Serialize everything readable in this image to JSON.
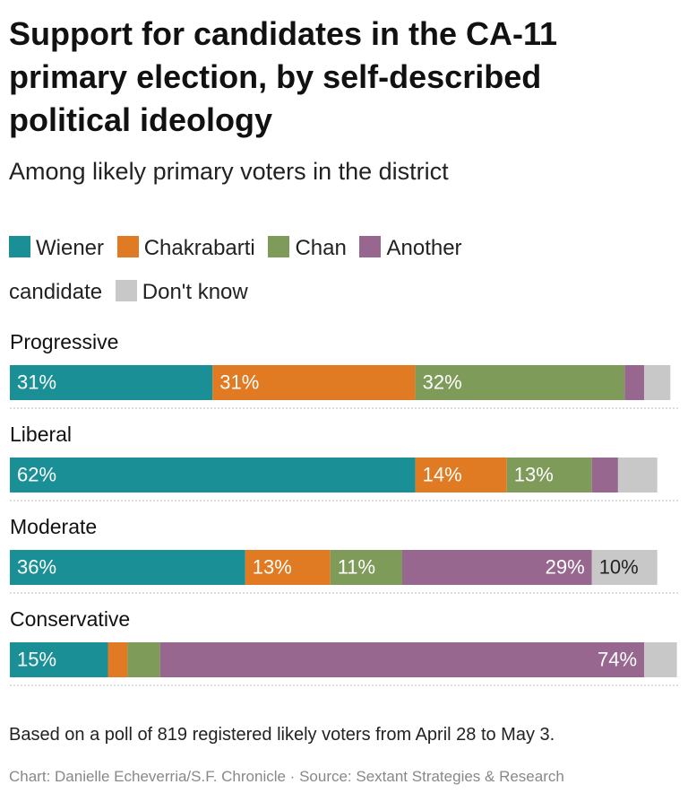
{
  "chart_data": {
    "type": "stacked-bar-horizontal",
    "title": "Support for candidates in the CA-11 primary election, by self-described political ideology",
    "subtitle": "Among likely primary voters in the district",
    "categories": [
      "Progressive",
      "Liberal",
      "Moderate",
      "Conservative"
    ],
    "series": [
      {
        "name": "Wiener",
        "color": "#1a9096",
        "values": [
          31,
          62,
          36,
          15
        ],
        "value_labels": [
          "31%",
          "62%",
          "36%",
          "15%"
        ]
      },
      {
        "name": "Chakrabarti",
        "color": "#e07b24",
        "values": [
          31,
          14,
          13,
          3
        ],
        "value_labels": [
          "31%",
          "14%",
          "13%",
          null
        ]
      },
      {
        "name": "Chan",
        "color": "#7f9b5a",
        "values": [
          32,
          13,
          11,
          5
        ],
        "value_labels": [
          "32%",
          "13%",
          "11%",
          null
        ]
      },
      {
        "name": "Another candidate",
        "color": "#98678f",
        "values": [
          3,
          4,
          29,
          74
        ],
        "value_labels": [
          null,
          null,
          "29%",
          "74%"
        ]
      },
      {
        "name": "Don't know",
        "color": "#c8c8c8",
        "values": [
          4,
          6,
          10,
          5
        ],
        "value_labels": [
          null,
          null,
          "10%",
          null
        ]
      }
    ],
    "note": "Based on a poll of 819 registered likely voters from April 28 to May 3.",
    "credit": "Chart: Danielle Echeverria/S.F. Chronicle · Source: Sextant Strategies & Research"
  }
}
